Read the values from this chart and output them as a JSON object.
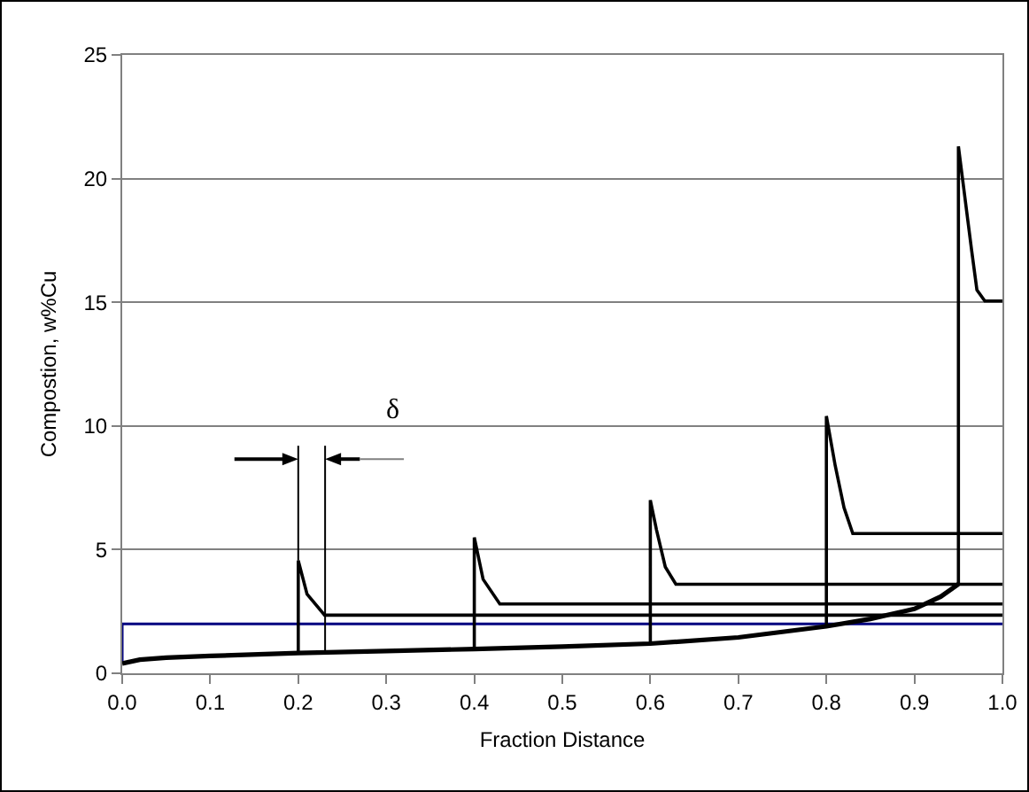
{
  "chart_data": {
    "type": "line",
    "xlabel": "Fraction Distance",
    "ylabel": "Compostion, w%Cu",
    "xlim": [
      0,
      1
    ],
    "ylim": [
      0,
      25
    ],
    "xticks": [
      {
        "value": 0,
        "label": "0.0"
      },
      0.1,
      0.2,
      0.3,
      0.4,
      0.5,
      0.6,
      0.7,
      0.8,
      0.9,
      {
        "value": 1,
        "label": "1.0"
      }
    ],
    "yticks": [
      0,
      5,
      10,
      15,
      20,
      25
    ],
    "grid": "y",
    "marker": "none",
    "line_style": "solid",
    "annotations": [
      "δ"
    ],
    "series": [
      {
        "color": "#000080",
        "x": [
          0,
          0,
          1
        ],
        "values": [
          0.4,
          2,
          2
        ]
      },
      {
        "color": "#000000",
        "x": [
          0,
          0.02,
          0.05,
          0.1,
          0.2,
          0.3,
          0.4,
          0.5,
          0.6,
          0.7,
          0.8,
          0.85,
          0.9,
          0.93,
          0.95
        ],
        "values": [
          0.4,
          0.55,
          0.63,
          0.7,
          0.82,
          0.9,
          0.98,
          1.08,
          1.2,
          1.45,
          1.9,
          2.2,
          2.6,
          3.1,
          3.6
        ]
      },
      {
        "color": "#000000",
        "x": [
          0.2,
          0.2,
          0.21,
          0.23,
          1
        ],
        "values": [
          0.82,
          4.56,
          3.2,
          2.35,
          2.35
        ]
      },
      {
        "color": "#000000",
        "x": [
          0.4,
          0.4,
          0.41,
          0.429,
          1
        ],
        "values": [
          0.98,
          5.49,
          3.8,
          2.8,
          2.8
        ]
      },
      {
        "color": "#000000",
        "x": [
          0.6,
          0.6,
          0.607,
          0.617,
          0.629,
          1
        ],
        "values": [
          1.2,
          7.0,
          5.8,
          4.3,
          3.6,
          3.6
        ]
      },
      {
        "color": "#000000",
        "x": [
          0.8,
          0.8,
          0.81,
          0.82,
          0.83,
          1
        ],
        "values": [
          1.9,
          10.4,
          8.4,
          6.7,
          5.65,
          5.65
        ]
      },
      {
        "color": "#000000",
        "x": [
          0.95,
          0.95,
          0.955,
          0.965,
          0.971,
          0.98,
          1
        ],
        "values": [
          3.6,
          21.3,
          19.9,
          17.1,
          15.5,
          15.05,
          15.05
        ]
      }
    ]
  }
}
